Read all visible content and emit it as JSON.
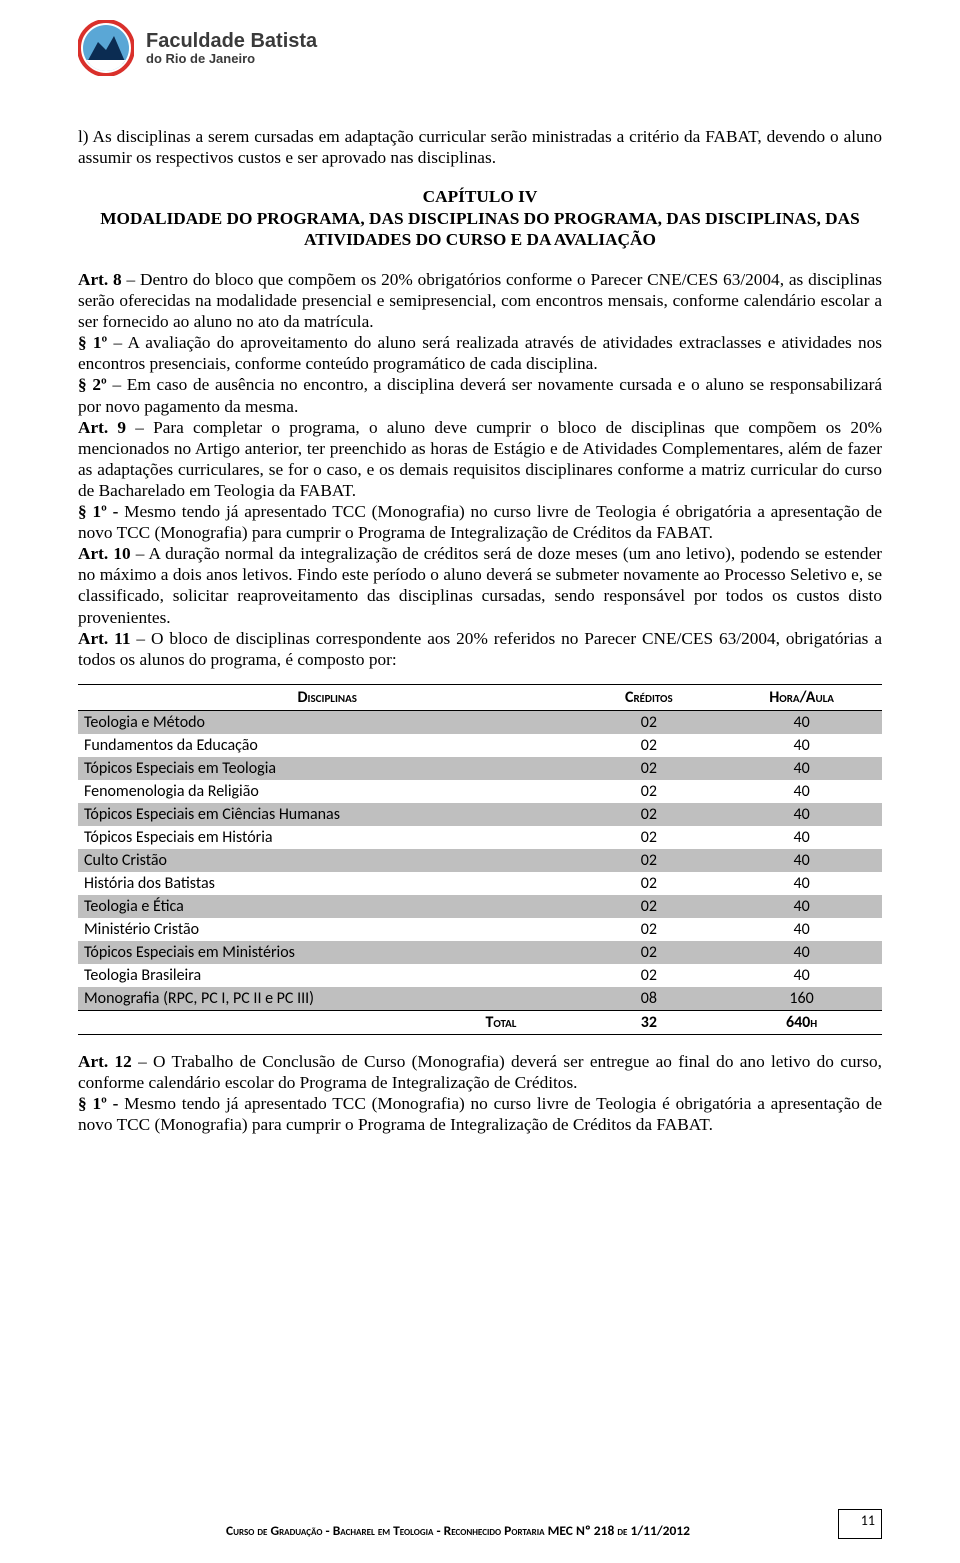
{
  "header": {
    "brand_title": "Faculdade Batista",
    "brand_sub": "do Rio de Janeiro",
    "logo": {
      "ring_color": "#d9302b",
      "sky_color": "#5aa7d6",
      "white": "#ffffff",
      "rock_color": "#0b2c52"
    }
  },
  "intro_para": "l) As disciplinas a serem cursadas em adaptação curricular serão ministradas a critério da FABAT, devendo o aluno assumir os respectivos custos e ser aprovado nas disciplinas.",
  "chapter": {
    "line1": "CAPÍTULO IV",
    "line2": "MODALIDADE DO PROGRAMA, DAS DISCIPLINAS DO PROGRAMA, DAS DISCIPLINAS, DAS ATIVIDADES DO CURSO E DA AVALIAÇÃO"
  },
  "body": {
    "art8_label": "Art. 8",
    "art8_text": " – Dentro do bloco que compõem os 20% obrigatórios conforme o Parecer CNE/CES 63/2004, as disciplinas serão oferecidas na modalidade presencial e semipresencial, com encontros mensais, conforme calendário escolar a ser fornecido ao aluno no ato da matrícula.",
    "p1a_label": "§ 1º",
    "p1a_text": " – A avaliação do aproveitamento do aluno será realizada através de atividades extraclasses e atividades nos encontros presenciais, conforme conteúdo programático de cada disciplina.",
    "p2a_label": "§ 2º",
    "p2a_text": " – Em caso de ausência no encontro, a disciplina deverá ser novamente cursada e o aluno se responsabilizará por novo pagamento da mesma.",
    "art9_label": "Art. 9",
    "art9_text": " – Para completar o programa, o aluno deve cumprir o bloco de disciplinas que compõem os 20% mencionados no Artigo anterior, ter preenchido as horas de Estágio e de Atividades Complementares, além de fazer as adaptações curriculares, se for o caso, e os demais requisitos disciplinares conforme a matriz curricular do curso de Bacharelado em Teologia da FABAT.",
    "p1b_label": "§ 1º -",
    "p1b_text": " Mesmo tendo já apresentado TCC (Monografia) no curso livre de Teologia é obrigatória a apresentação de novo TCC (Monografia) para cumprir o Programa de Integralização de Créditos da FABAT.",
    "art10_label": "Art. 10",
    "art10_text": " – A duração normal da integralização de créditos será de doze meses (um ano letivo), podendo se estender no máximo a dois anos letivos. Findo este período o aluno deverá se submeter novamente ao Processo Seletivo e, se classificado, solicitar reaproveitamento das disciplinas cursadas, sendo responsável por todos os custos disto provenientes.",
    "art11_label": "Art. 11",
    "art11_text": " – O bloco de disciplinas correspondente aos 20% referidos no Parecer CNE/CES 63/2004, obrigatórias a todos os alunos do programa, é composto por:"
  },
  "table": {
    "headers": {
      "c1": "Disciplinas",
      "c2": "Créditos",
      "c3": "Hora/Aula"
    },
    "rows": [
      {
        "shade": true,
        "name": "Teologia e Método",
        "cred": "02",
        "hora": "40"
      },
      {
        "shade": false,
        "name": "Fundamentos da Educação",
        "cred": "02",
        "hora": "40"
      },
      {
        "shade": true,
        "name": "Tópicos Especiais em Teologia",
        "cred": "02",
        "hora": "40"
      },
      {
        "shade": false,
        "name": "Fenomenologia da Religião",
        "cred": "02",
        "hora": "40"
      },
      {
        "shade": true,
        "name": "Tópicos Especiais em Ciências Humanas",
        "cred": "02",
        "hora": "40"
      },
      {
        "shade": false,
        "name": "Tópicos Especiais em História",
        "cred": "02",
        "hora": "40"
      },
      {
        "shade": true,
        "name": "Culto Cristão",
        "cred": "02",
        "hora": "40"
      },
      {
        "shade": false,
        "name": "História dos Batistas",
        "cred": "02",
        "hora": "40"
      },
      {
        "shade": true,
        "name": "Teologia e Ética",
        "cred": "02",
        "hora": "40"
      },
      {
        "shade": false,
        "name": "Ministério Cristão",
        "cred": "02",
        "hora": "40"
      },
      {
        "shade": true,
        "name": "Tópicos Especiais em Ministérios",
        "cred": "02",
        "hora": "40"
      },
      {
        "shade": false,
        "name": "Teologia Brasileira",
        "cred": "02",
        "hora": "40"
      },
      {
        "shade": true,
        "name": "Monografia (RPC, PC I, PC II e PC III)",
        "cred": "08",
        "hora": "160"
      }
    ],
    "total": {
      "label": "Total",
      "cred": "32",
      "hora": "640h"
    }
  },
  "after": {
    "art12_label": "Art. 12",
    "art12_text": " – O Trabalho de Conclusão de Curso (Monografia) deverá ser entregue ao final do ano letivo do curso, conforme calendário escolar do Programa de Integralização de Créditos.",
    "p1c_label": "§ 1º -",
    "p1c_text": " Mesmo tendo já apresentado TCC (Monografia) no curso livre de Teologia é obrigatória a apresentação de novo TCC (Monografia) para cumprir o Programa de Integralização de Créditos da FABAT."
  },
  "footer": {
    "text": "Curso de Graduação - Bacharel em Teologia - Reconhecido Portaria MEC Nº 218 de 1/11/2012",
    "page": "11"
  }
}
